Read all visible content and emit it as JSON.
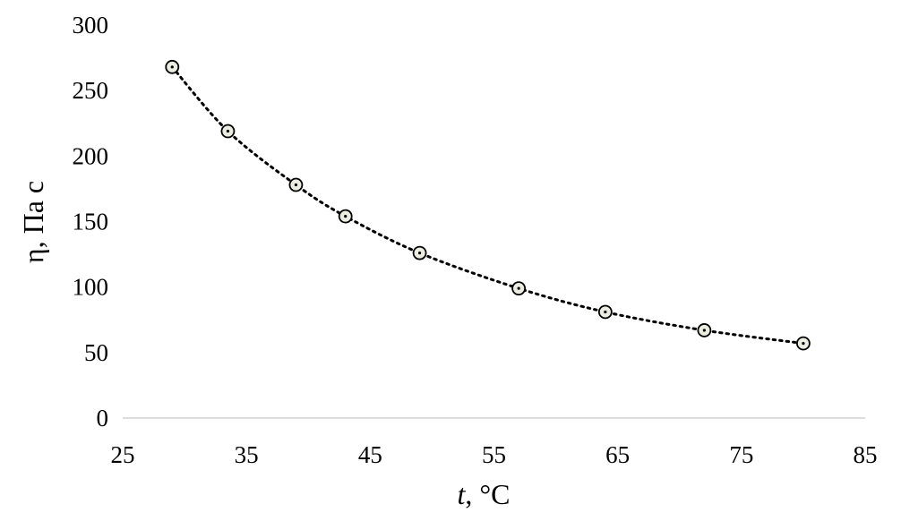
{
  "chart_data": {
    "type": "scatter",
    "xlabel_italic": "t",
    "xlabel_rest": ", °C",
    "ylabel": "η, Па с",
    "xlim": [
      25,
      85
    ],
    "ylim": [
      0,
      300
    ],
    "xticks": [
      25,
      35,
      45,
      55,
      65,
      75,
      85
    ],
    "yticks": [
      0,
      50,
      100,
      150,
      200,
      250,
      300
    ],
    "grid": false,
    "trendline": "dotted smooth curve",
    "series": [
      {
        "x": [
          29,
          33.5,
          39,
          43,
          49,
          57,
          64,
          72,
          80
        ],
        "y": [
          268,
          219,
          178,
          154,
          126,
          99,
          81,
          67,
          57
        ]
      }
    ],
    "colors": {
      "marker_fill": "#ecece0",
      "marker_stroke": "#000000",
      "axis": "#d0d0d0"
    }
  }
}
